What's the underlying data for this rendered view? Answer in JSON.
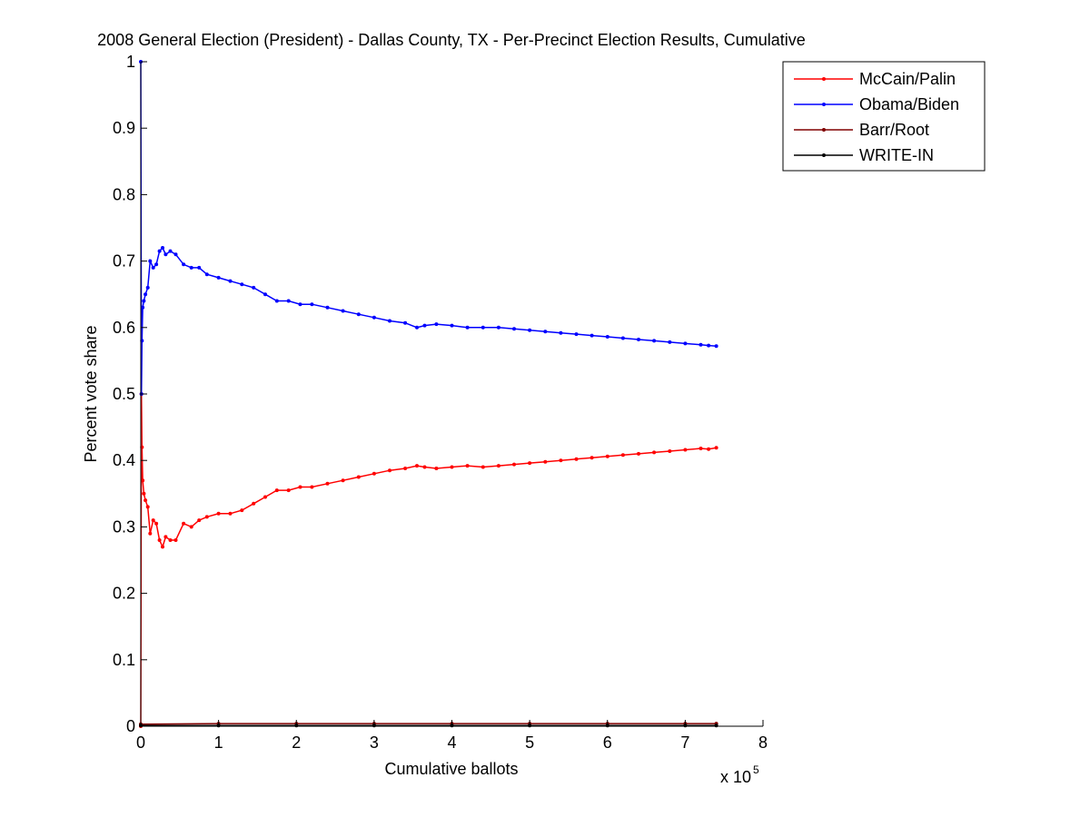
{
  "chart_data": {
    "type": "line",
    "title": "2008 General Election (President) - Dallas County, TX - Per-Precinct Election Results, Cumulative",
    "xlabel": "Cumulative ballots",
    "ylabel": "Percent vote share",
    "x_multiplier_label": "x 10",
    "x_multiplier_exp": "5",
    "xlim": [
      0,
      800000
    ],
    "ylim": [
      0,
      1
    ],
    "x_ticks": [
      0,
      100000,
      200000,
      300000,
      400000,
      500000,
      600000,
      700000,
      800000
    ],
    "x_tick_labels": [
      "0",
      "1",
      "2",
      "3",
      "4",
      "5",
      "6",
      "7",
      "8"
    ],
    "y_ticks": [
      0,
      0.1,
      0.2,
      0.3,
      0.4,
      0.5,
      0.6,
      0.7,
      0.8,
      0.9,
      1
    ],
    "y_tick_labels": [
      "0",
      "0.1",
      "0.2",
      "0.3",
      "0.4",
      "0.5",
      "0.6",
      "0.7",
      "0.8",
      "0.9",
      "1"
    ],
    "grid": false,
    "legend_position": "top-right",
    "series": [
      {
        "name": "McCain/Palin",
        "color": "#ff0000",
        "x": [
          0,
          800,
          1500,
          2500,
          4000,
          6000,
          9000,
          12000,
          16000,
          20000,
          24000,
          28000,
          32000,
          38000,
          45000,
          55000,
          65000,
          75000,
          85000,
          100000,
          115000,
          130000,
          145000,
          160000,
          175000,
          190000,
          205000,
          220000,
          240000,
          260000,
          280000,
          300000,
          320000,
          340000,
          355000,
          365000,
          380000,
          400000,
          420000,
          440000,
          460000,
          480000,
          500000,
          520000,
          540000,
          560000,
          580000,
          600000,
          620000,
          640000,
          660000,
          680000,
          700000,
          720000,
          730000,
          740000
        ],
        "values": [
          0.0,
          0.5,
          0.42,
          0.37,
          0.35,
          0.34,
          0.33,
          0.29,
          0.31,
          0.305,
          0.28,
          0.27,
          0.285,
          0.28,
          0.28,
          0.305,
          0.3,
          0.31,
          0.315,
          0.32,
          0.32,
          0.325,
          0.335,
          0.345,
          0.355,
          0.355,
          0.36,
          0.36,
          0.365,
          0.37,
          0.375,
          0.38,
          0.385,
          0.388,
          0.392,
          0.39,
          0.388,
          0.39,
          0.392,
          0.39,
          0.392,
          0.394,
          0.396,
          0.398,
          0.4,
          0.402,
          0.404,
          0.406,
          0.408,
          0.41,
          0.412,
          0.414,
          0.416,
          0.418,
          0.417,
          0.419
        ]
      },
      {
        "name": "Obama/Biden",
        "color": "#0000ff",
        "x": [
          0,
          800,
          1500,
          2500,
          4000,
          6000,
          9000,
          12000,
          16000,
          20000,
          24000,
          28000,
          32000,
          38000,
          45000,
          55000,
          65000,
          75000,
          85000,
          100000,
          115000,
          130000,
          145000,
          160000,
          175000,
          190000,
          205000,
          220000,
          240000,
          260000,
          280000,
          300000,
          320000,
          340000,
          355000,
          365000,
          380000,
          400000,
          420000,
          440000,
          460000,
          480000,
          500000,
          520000,
          540000,
          560000,
          580000,
          600000,
          620000,
          640000,
          660000,
          680000,
          700000,
          720000,
          730000,
          740000
        ],
        "values": [
          1.0,
          0.5,
          0.58,
          0.63,
          0.64,
          0.65,
          0.66,
          0.7,
          0.69,
          0.695,
          0.715,
          0.72,
          0.71,
          0.715,
          0.71,
          0.695,
          0.69,
          0.69,
          0.68,
          0.675,
          0.67,
          0.665,
          0.66,
          0.65,
          0.64,
          0.64,
          0.635,
          0.635,
          0.63,
          0.625,
          0.62,
          0.615,
          0.61,
          0.607,
          0.6,
          0.603,
          0.605,
          0.603,
          0.6,
          0.6,
          0.6,
          0.598,
          0.596,
          0.594,
          0.592,
          0.59,
          0.588,
          0.586,
          0.584,
          0.582,
          0.58,
          0.578,
          0.576,
          0.574,
          0.573,
          0.572
        ]
      },
      {
        "name": "Barr/Root",
        "color": "#800000",
        "x": [
          0,
          100000,
          200000,
          300000,
          400000,
          500000,
          600000,
          700000,
          740000
        ],
        "values": [
          0.003,
          0.004,
          0.004,
          0.004,
          0.004,
          0.004,
          0.004,
          0.004,
          0.004
        ]
      },
      {
        "name": "WRITE-IN",
        "color": "#000000",
        "x": [
          0,
          100000,
          200000,
          300000,
          400000,
          500000,
          600000,
          700000,
          740000
        ],
        "values": [
          0.001,
          0.001,
          0.001,
          0.001,
          0.001,
          0.001,
          0.001,
          0.001,
          0.001
        ]
      }
    ]
  }
}
